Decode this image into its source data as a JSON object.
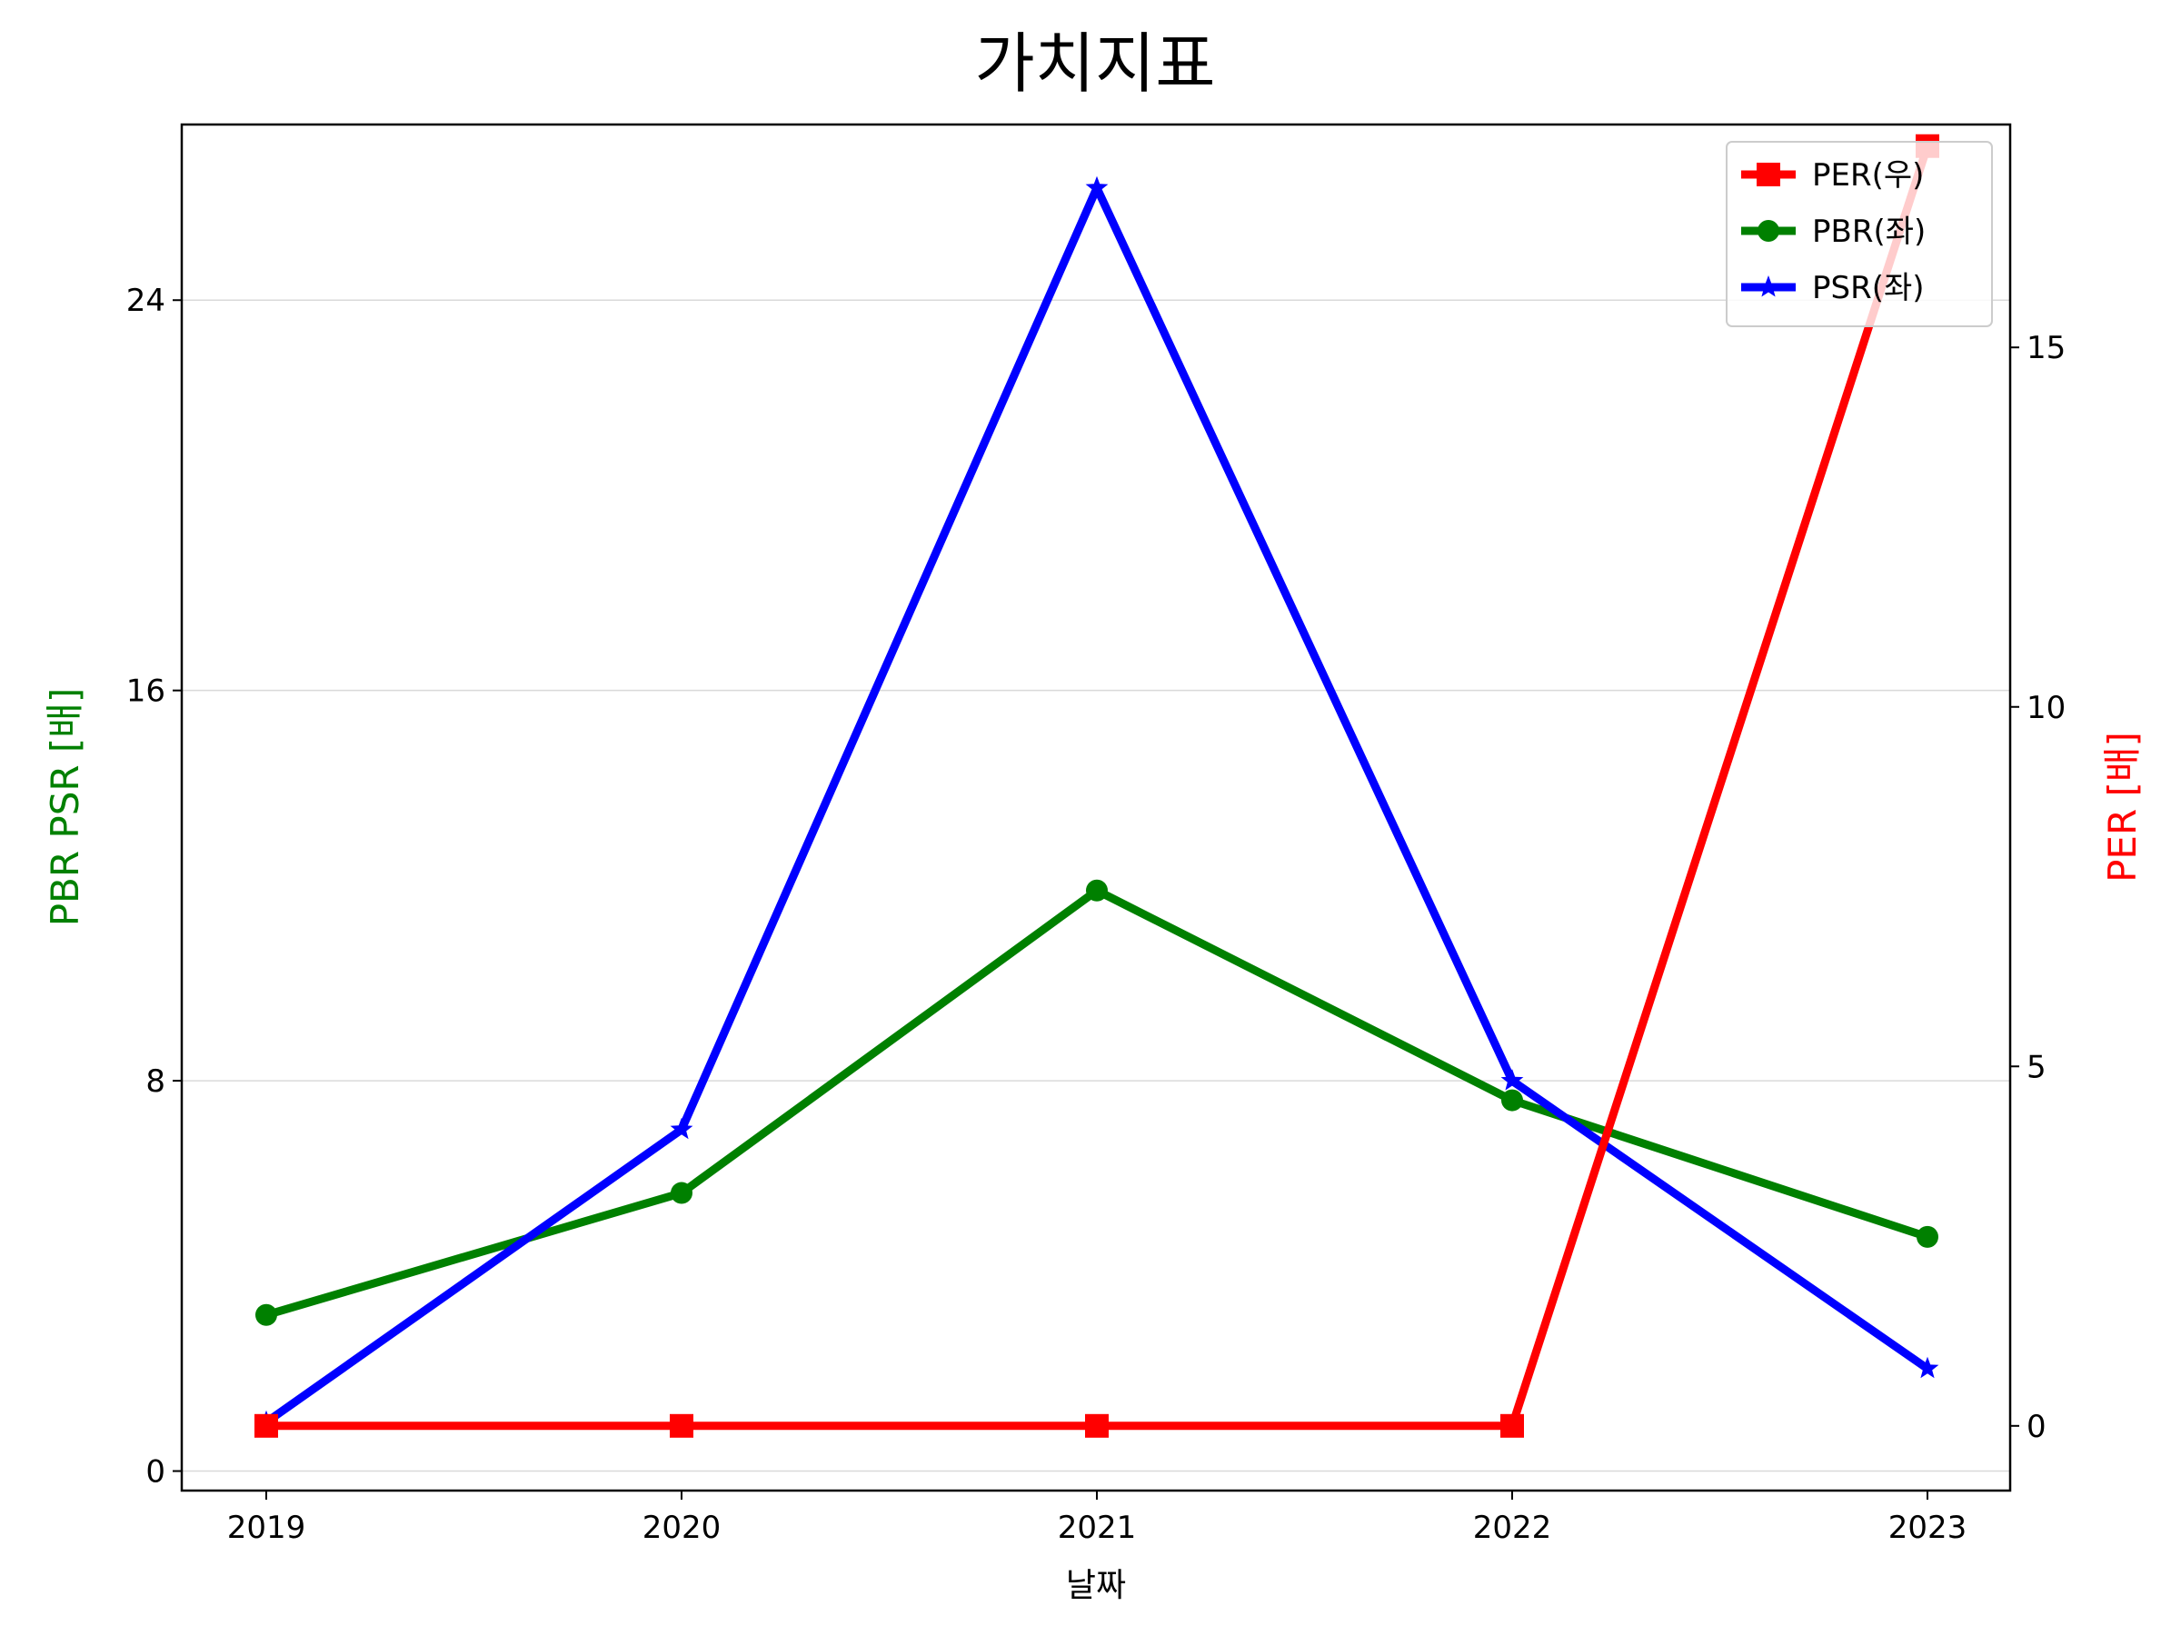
{
  "chart_data": {
    "type": "line",
    "title": "가치지표",
    "xlabel": "날짜",
    "ylabel_left": "PBR PSR [배]",
    "ylabel_right": "PER [배]",
    "categories": [
      "2019",
      "2020",
      "2021",
      "2022",
      "2023"
    ],
    "left_axis": {
      "ylim": [
        -0.4,
        27.6
      ],
      "ticks": [
        0,
        8,
        16,
        24
      ],
      "tick_labels": [
        "0",
        "8",
        "16",
        "24"
      ],
      "color": "#008000"
    },
    "right_axis": {
      "ylim": [
        -0.9,
        18.1
      ],
      "ticks": [
        0,
        5,
        10,
        15
      ],
      "tick_labels": [
        "0",
        "5",
        "10",
        "15"
      ],
      "color": "#ff0000"
    },
    "grid": "horizontal (left axis)",
    "legend_position": "top-right",
    "series": [
      {
        "name": "PER(우)",
        "axis": "right",
        "color": "#ff0000",
        "marker": "square",
        "values": [
          0,
          0,
          0,
          0,
          17.8
        ]
      },
      {
        "name": "PBR(좌)",
        "axis": "left",
        "color": "#008000",
        "marker": "circle",
        "values": [
          3.2,
          5.7,
          11.9,
          7.6,
          4.8
        ]
      },
      {
        "name": "PSR(좌)",
        "axis": "left",
        "color": "#0000ff",
        "marker": "star",
        "values": [
          1.0,
          7.0,
          26.3,
          8.0,
          2.1
        ]
      }
    ]
  }
}
